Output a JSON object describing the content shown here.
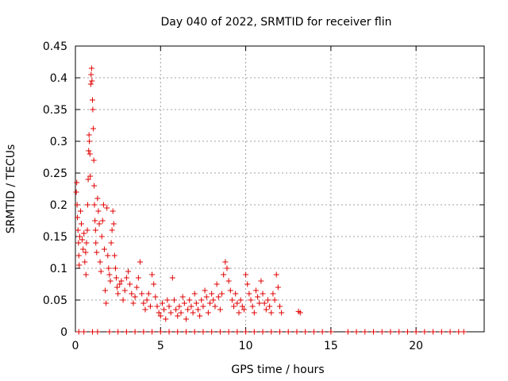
{
  "chart_data": {
    "type": "scatter",
    "title": "Day 040 of 2022, SRMTID for receiver flin",
    "xlabel": "GPS time / hours",
    "ylabel": "SRMTID / TECUs",
    "xlim": [
      0,
      24
    ],
    "ylim": [
      0,
      0.45
    ],
    "x_ticks": [
      0,
      5,
      10,
      15,
      20
    ],
    "y_ticks": [
      0,
      0.05,
      0.1,
      0.15,
      0.2,
      0.25,
      0.3,
      0.35,
      0.4,
      0.45
    ],
    "grid": true,
    "marker": "+",
    "color": "#e00000",
    "series": [
      {
        "points": [
          [
            0.05,
            0.22
          ],
          [
            0.08,
            0.235
          ],
          [
            0.1,
            0.2
          ],
          [
            0.12,
            0.18
          ],
          [
            0.15,
            0.16
          ],
          [
            0.18,
            0.14
          ],
          [
            0.2,
            0.12
          ],
          [
            0.22,
            0.105
          ],
          [
            0.25,
            0.15
          ],
          [
            0.3,
            0.19
          ],
          [
            0.35,
            0.17
          ],
          [
            0.4,
            0.145
          ],
          [
            0.45,
            0.13
          ],
          [
            0.5,
            0.155
          ],
          [
            0.55,
            0.11
          ],
          [
            0.6,
            0.125
          ],
          [
            0.62,
            0.09
          ],
          [
            0.65,
            0.14
          ],
          [
            0.7,
            0.16
          ],
          [
            0.72,
            0.2
          ],
          [
            0.75,
            0.24
          ],
          [
            0.78,
            0.285
          ],
          [
            0.8,
            0.31
          ],
          [
            0.82,
            0.3
          ],
          [
            0.85,
            0.28
          ],
          [
            0.87,
            0.245
          ],
          [
            0.9,
            0.39
          ],
          [
            0.92,
            0.405
          ],
          [
            0.95,
            0.415
          ],
          [
            0.97,
            0.395
          ],
          [
            1.0,
            0.365
          ],
          [
            1.02,
            0.35
          ],
          [
            1.05,
            0.32
          ],
          [
            1.08,
            0.27
          ],
          [
            1.1,
            0.23
          ],
          [
            1.12,
            0.2
          ],
          [
            1.15,
            0.175
          ],
          [
            1.18,
            0.16
          ],
          [
            1.2,
            0.14
          ],
          [
            1.25,
            0.125
          ],
          [
            1.3,
            0.21
          ],
          [
            1.35,
            0.19
          ],
          [
            1.4,
            0.17
          ],
          [
            1.45,
            0.11
          ],
          [
            1.5,
            0.095
          ],
          [
            1.55,
            0.15
          ],
          [
            1.6,
            0.175
          ],
          [
            1.65,
            0.2
          ],
          [
            1.7,
            0.13
          ],
          [
            1.75,
            0.065
          ],
          [
            1.8,
            0.045
          ],
          [
            1.85,
            0.195
          ],
          [
            1.9,
            0.12
          ],
          [
            1.95,
            0.1
          ],
          [
            2.0,
            0.09
          ],
          [
            2.05,
            0.08
          ],
          [
            2.1,
            0.14
          ],
          [
            2.15,
            0.16
          ],
          [
            2.2,
            0.19
          ],
          [
            2.25,
            0.17
          ],
          [
            2.3,
            0.12
          ],
          [
            2.35,
            0.1
          ],
          [
            2.4,
            0.085
          ],
          [
            2.45,
            0.07
          ],
          [
            2.5,
            0.06
          ],
          [
            2.6,
            0.075
          ],
          [
            2.7,
            0.08
          ],
          [
            2.8,
            0.05
          ],
          [
            2.9,
            0.065
          ],
          [
            3.0,
            0.085
          ],
          [
            3.1,
            0.095
          ],
          [
            3.2,
            0.075
          ],
          [
            3.3,
            0.06
          ],
          [
            3.4,
            0.045
          ],
          [
            3.5,
            0.055
          ],
          [
            3.6,
            0.07
          ],
          [
            3.7,
            0.085
          ],
          [
            3.8,
            0.11
          ],
          [
            3.9,
            0.06
          ],
          [
            4.0,
            0.045
          ],
          [
            4.1,
            0.035
          ],
          [
            4.2,
            0.05
          ],
          [
            4.3,
            0.06
          ],
          [
            4.4,
            0.04
          ],
          [
            4.5,
            0.09
          ],
          [
            4.6,
            0.075
          ],
          [
            4.7,
            0.055
          ],
          [
            4.8,
            0.04
          ],
          [
            4.9,
            0.03
          ],
          [
            5.0,
            0.025
          ],
          [
            5.1,
            0.045
          ],
          [
            5.2,
            0.035
          ],
          [
            5.3,
            0.02
          ],
          [
            5.4,
            0.05
          ],
          [
            5.5,
            0.04
          ],
          [
            5.6,
            0.03
          ],
          [
            5.7,
            0.085
          ],
          [
            5.8,
            0.05
          ],
          [
            5.9,
            0.035
          ],
          [
            6.0,
            0.025
          ],
          [
            6.1,
            0.04
          ],
          [
            6.2,
            0.03
          ],
          [
            6.3,
            0.055
          ],
          [
            6.4,
            0.045
          ],
          [
            6.5,
            0.02
          ],
          [
            6.6,
            0.035
          ],
          [
            6.7,
            0.05
          ],
          [
            6.8,
            0.04
          ],
          [
            6.9,
            0.03
          ],
          [
            7.0,
            0.06
          ],
          [
            7.1,
            0.045
          ],
          [
            7.2,
            0.035
          ],
          [
            7.3,
            0.025
          ],
          [
            7.4,
            0.05
          ],
          [
            7.5,
            0.04
          ],
          [
            7.6,
            0.065
          ],
          [
            7.7,
            0.055
          ],
          [
            7.8,
            0.03
          ],
          [
            7.9,
            0.045
          ],
          [
            8.0,
            0.06
          ],
          [
            8.1,
            0.05
          ],
          [
            8.2,
            0.04
          ],
          [
            8.3,
            0.075
          ],
          [
            8.4,
            0.055
          ],
          [
            8.5,
            0.035
          ],
          [
            8.6,
            0.06
          ],
          [
            8.7,
            0.09
          ],
          [
            8.8,
            0.11
          ],
          [
            8.9,
            0.1
          ],
          [
            9.0,
            0.08
          ],
          [
            9.1,
            0.065
          ],
          [
            9.2,
            0.05
          ],
          [
            9.3,
            0.04
          ],
          [
            9.4,
            0.06
          ],
          [
            9.5,
            0.045
          ],
          [
            9.6,
            0.03
          ],
          [
            9.7,
            0.05
          ],
          [
            9.8,
            0.04
          ],
          [
            9.9,
            0.035
          ],
          [
            10.0,
            0.09
          ],
          [
            10.1,
            0.075
          ],
          [
            10.2,
            0.06
          ],
          [
            10.3,
            0.05
          ],
          [
            10.4,
            0.04
          ],
          [
            10.5,
            0.03
          ],
          [
            10.6,
            0.065
          ],
          [
            10.7,
            0.055
          ],
          [
            10.8,
            0.045
          ],
          [
            10.9,
            0.08
          ],
          [
            11.0,
            0.06
          ],
          [
            11.1,
            0.045
          ],
          [
            11.2,
            0.035
          ],
          [
            11.3,
            0.05
          ],
          [
            11.4,
            0.04
          ],
          [
            11.5,
            0.03
          ],
          [
            11.6,
            0.06
          ],
          [
            11.7,
            0.05
          ],
          [
            11.8,
            0.09
          ],
          [
            11.9,
            0.07
          ],
          [
            12.0,
            0.04
          ],
          [
            12.1,
            0.03
          ],
          [
            13.1,
            0.032
          ],
          [
            13.2,
            0.03
          ],
          [
            0.2,
            0
          ],
          [
            0.5,
            0
          ],
          [
            1.0,
            0
          ],
          [
            1.3,
            0
          ],
          [
            2.0,
            0
          ],
          [
            2.5,
            0
          ],
          [
            3.0,
            0
          ],
          [
            3.5,
            0
          ],
          [
            4.0,
            0
          ],
          [
            4.5,
            0
          ],
          [
            5.0,
            0
          ],
          [
            5.5,
            0
          ],
          [
            6.0,
            0
          ],
          [
            6.5,
            0
          ],
          [
            7.0,
            0
          ],
          [
            7.5,
            0
          ],
          [
            8.0,
            0
          ],
          [
            8.5,
            0
          ],
          [
            9.0,
            0
          ],
          [
            9.5,
            0
          ],
          [
            10.0,
            0
          ],
          [
            10.5,
            0
          ],
          [
            11.0,
            0
          ],
          [
            11.5,
            0
          ],
          [
            12.0,
            0
          ],
          [
            12.5,
            0
          ],
          [
            13.0,
            0
          ],
          [
            13.5,
            0
          ],
          [
            14.0,
            0
          ],
          [
            14.5,
            0
          ],
          [
            15.0,
            0
          ],
          [
            16.0,
            0
          ],
          [
            16.5,
            0
          ],
          [
            17.0,
            0
          ],
          [
            17.5,
            0
          ],
          [
            18.0,
            0
          ],
          [
            18.5,
            0
          ],
          [
            19.0,
            0
          ],
          [
            19.5,
            0
          ],
          [
            20.0,
            0
          ],
          [
            20.5,
            0
          ],
          [
            21.0,
            0
          ],
          [
            21.5,
            0
          ],
          [
            22.0,
            0
          ],
          [
            22.5,
            0
          ],
          [
            22.8,
            0
          ]
        ]
      }
    ]
  }
}
